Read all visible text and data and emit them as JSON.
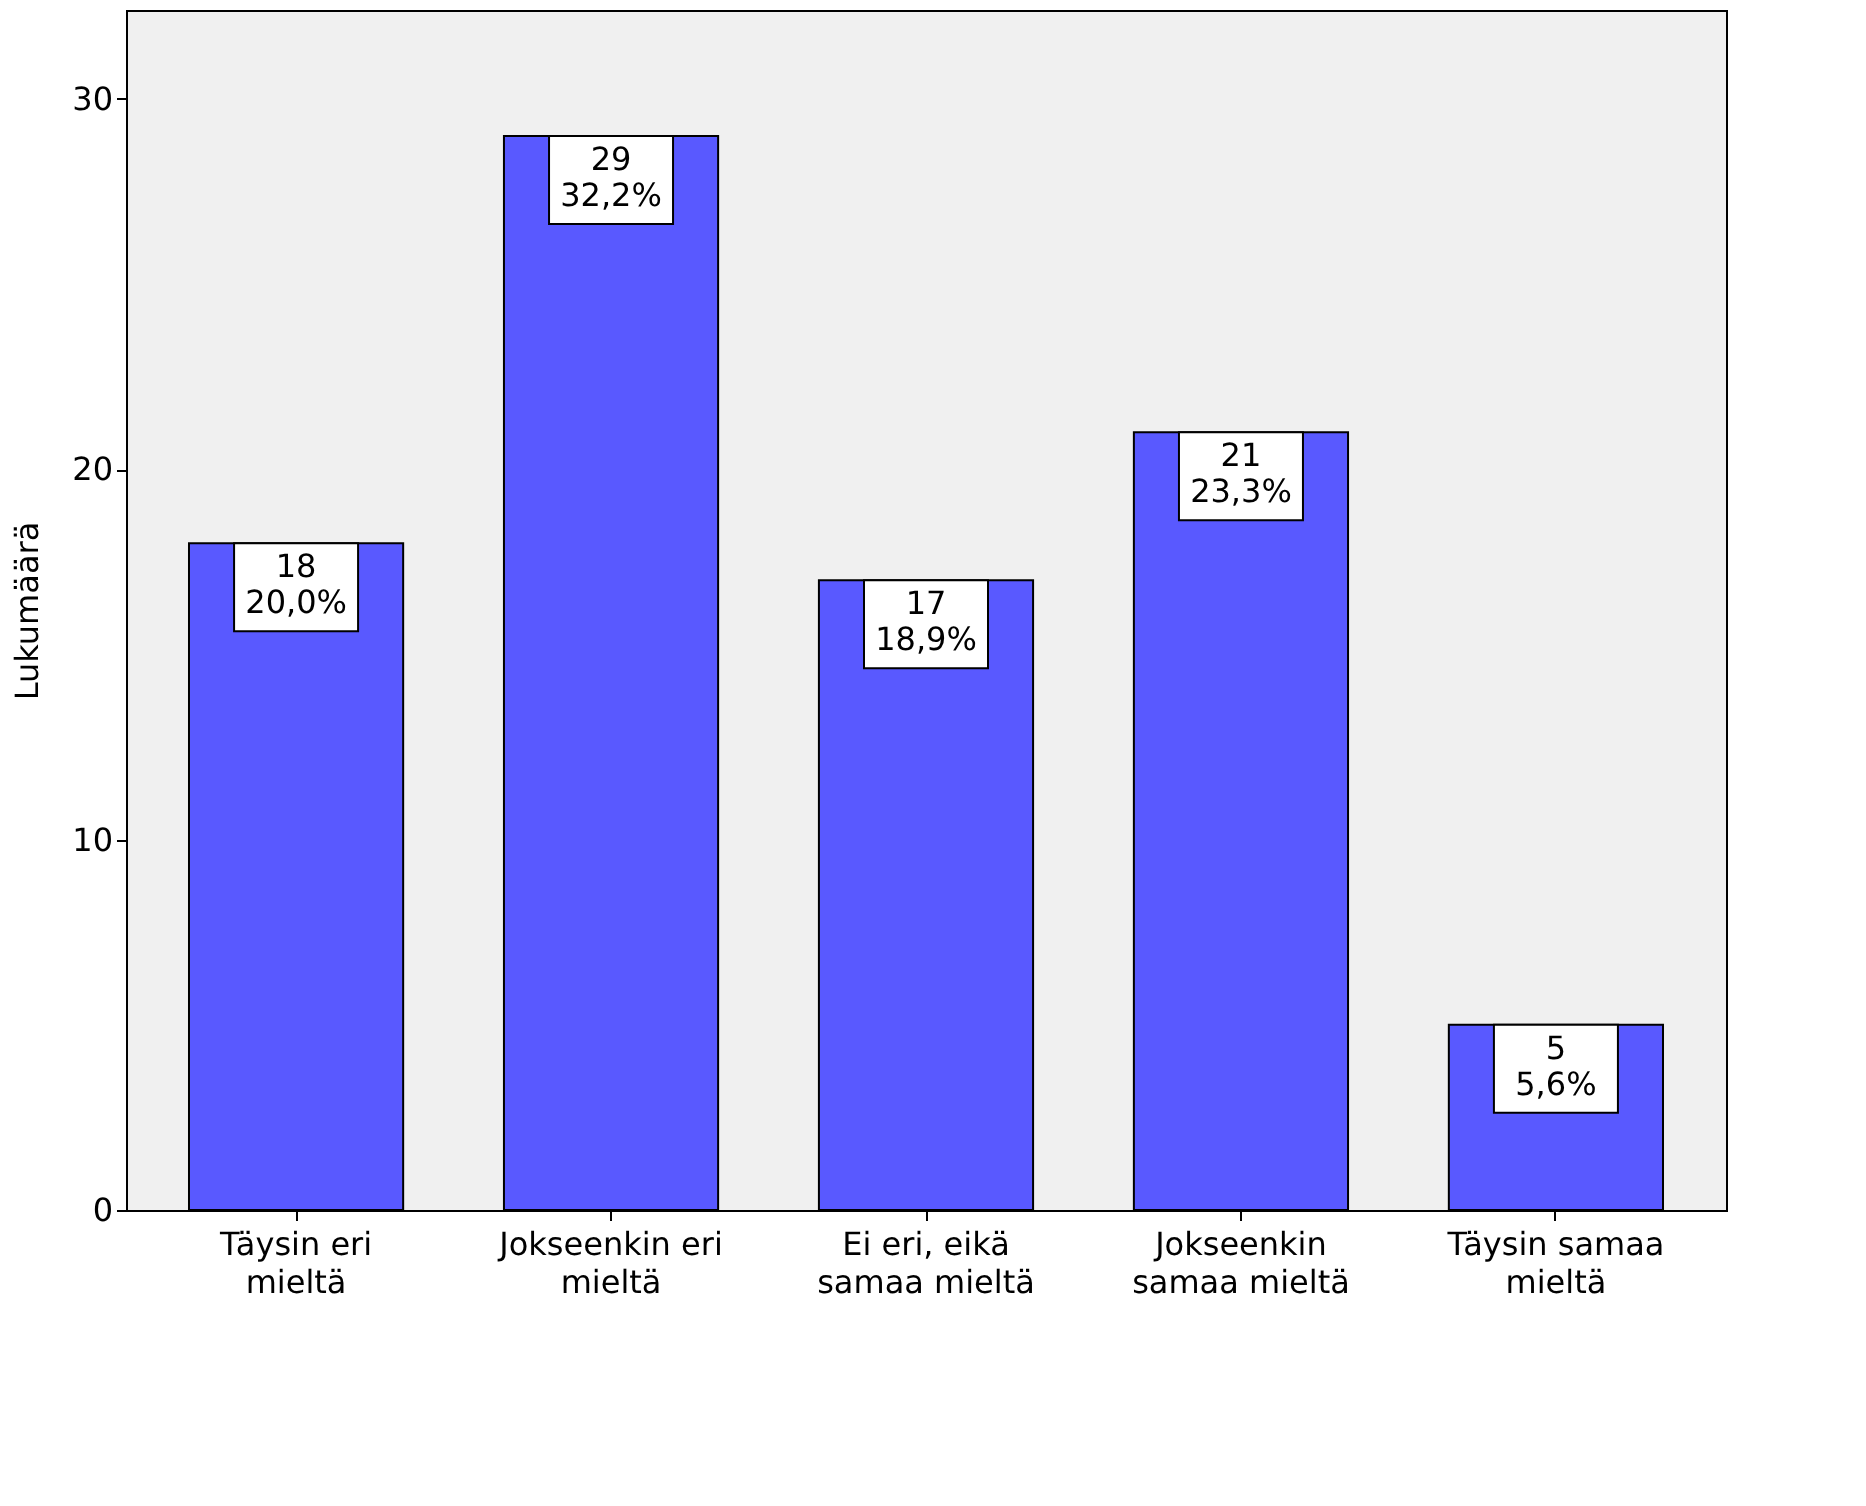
{
  "chart_data": {
    "type": "bar",
    "ylabel": "Lukumäärä",
    "categories": [
      "Täysin eri mieltä",
      "Jokseenkin eri mieltä",
      "Ei eri, eikä samaa mieltä",
      "Jokseenkin samaa mieltä",
      "Täysin samaa mieltä"
    ],
    "values": [
      18,
      29,
      17,
      21,
      5
    ],
    "value_labels": [
      "18\n20,0%",
      "29\n32,2%",
      "17\n18,9%",
      "21\n23,3%",
      "5\n5,6%"
    ],
    "color": "#5959ff",
    "ylim": [
      0,
      32.4
    ],
    "yticks": [
      0,
      10,
      20,
      30
    ],
    "grid": false
  }
}
